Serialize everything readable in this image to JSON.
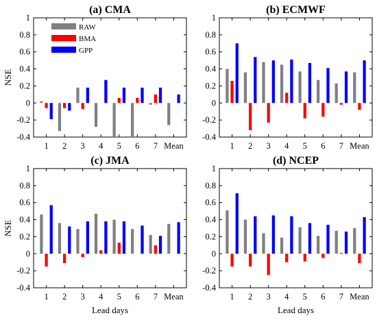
{
  "legend": [
    "RAW",
    "BMA",
    "GPP"
  ],
  "colors": {
    "RAW": "#808080",
    "BMA": "#ff0000",
    "GPP": "#0000ff"
  },
  "chart_data": [
    {
      "type": "bar",
      "title": "(a) CMA",
      "categories": [
        "1",
        "2",
        "3",
        "4",
        "5",
        "6",
        "7",
        "Mean"
      ],
      "series": [
        {
          "name": "RAW",
          "values": [
            0.02,
            -0.33,
            0.18,
            -0.28,
            -0.4,
            -0.4,
            -0.02,
            -0.26
          ]
        },
        {
          "name": "BMA",
          "values": [
            -0.06,
            -0.06,
            -0.07,
            0.0,
            0.06,
            0.06,
            0.1,
            0.0
          ]
        },
        {
          "name": "GPP",
          "values": [
            -0.19,
            -0.09,
            0.18,
            0.27,
            0.18,
            0.18,
            0.18,
            0.1
          ]
        }
      ],
      "ylabel": "NSE",
      "xlabel": "",
      "ylim": [
        -0.4,
        1.0
      ],
      "yticks": [
        "-0.4",
        "-0.2",
        "0",
        "0.2",
        "0.4",
        "0.6",
        "0.8",
        "1"
      ],
      "legend_position": "top-left"
    },
    {
      "type": "bar",
      "title": "(b) ECMWF",
      "categories": [
        "1",
        "2",
        "3",
        "4",
        "5",
        "6",
        "7",
        "Mean"
      ],
      "series": [
        {
          "name": "RAW",
          "values": [
            0.4,
            0.36,
            0.48,
            0.45,
            0.37,
            0.27,
            0.23,
            0.36
          ]
        },
        {
          "name": "BMA",
          "values": [
            0.26,
            -0.32,
            -0.23,
            0.12,
            -0.18,
            -0.16,
            -0.02,
            -0.08
          ]
        },
        {
          "name": "GPP",
          "values": [
            0.7,
            0.54,
            0.5,
            0.51,
            0.47,
            0.41,
            0.37,
            0.5
          ]
        }
      ],
      "ylabel": "",
      "xlabel": "",
      "ylim": [
        -0.4,
        1.0
      ],
      "yticks": [
        "-0.4",
        "-0.2",
        "0",
        "0.2",
        "0.4",
        "0.6",
        "0.8",
        "1"
      ]
    },
    {
      "type": "bar",
      "title": "(c) JMA",
      "categories": [
        "1",
        "2",
        "3",
        "4",
        "5",
        "6",
        "7",
        "Mean"
      ],
      "series": [
        {
          "name": "RAW",
          "values": [
            0.46,
            0.36,
            0.29,
            0.47,
            0.4,
            0.29,
            0.22,
            0.35
          ]
        },
        {
          "name": "BMA",
          "values": [
            -0.15,
            -0.11,
            -0.04,
            0.04,
            0.13,
            0.0,
            0.1,
            0.0
          ]
        },
        {
          "name": "GPP",
          "values": [
            0.57,
            0.32,
            0.38,
            0.38,
            0.38,
            0.33,
            0.21,
            0.37
          ]
        }
      ],
      "ylabel": "NSE",
      "xlabel": "Lead days",
      "ylim": [
        -0.4,
        1.0
      ],
      "yticks": [
        "-0.4",
        "-0.2",
        "0",
        "0.2",
        "0.4",
        "0.6",
        "0.8",
        "1"
      ]
    },
    {
      "type": "bar",
      "title": "(d) NCEP",
      "categories": [
        "1",
        "2",
        "3",
        "4",
        "5",
        "6",
        "7",
        "Mean"
      ],
      "series": [
        {
          "name": "RAW",
          "values": [
            0.51,
            0.4,
            0.24,
            0.19,
            0.31,
            0.21,
            0.27,
            0.3
          ]
        },
        {
          "name": "BMA",
          "values": [
            -0.15,
            -0.15,
            -0.25,
            -0.1,
            -0.09,
            -0.05,
            0.01,
            -0.11
          ]
        },
        {
          "name": "GPP",
          "values": [
            0.71,
            0.44,
            0.45,
            0.44,
            0.36,
            0.34,
            0.26,
            0.43
          ]
        }
      ],
      "ylabel": "",
      "xlabel": "Lead days",
      "ylim": [
        -0.4,
        1.0
      ],
      "yticks": [
        "-0.4",
        "-0.2",
        "0",
        "0.2",
        "0.4",
        "0.6",
        "0.8",
        "1"
      ]
    }
  ]
}
